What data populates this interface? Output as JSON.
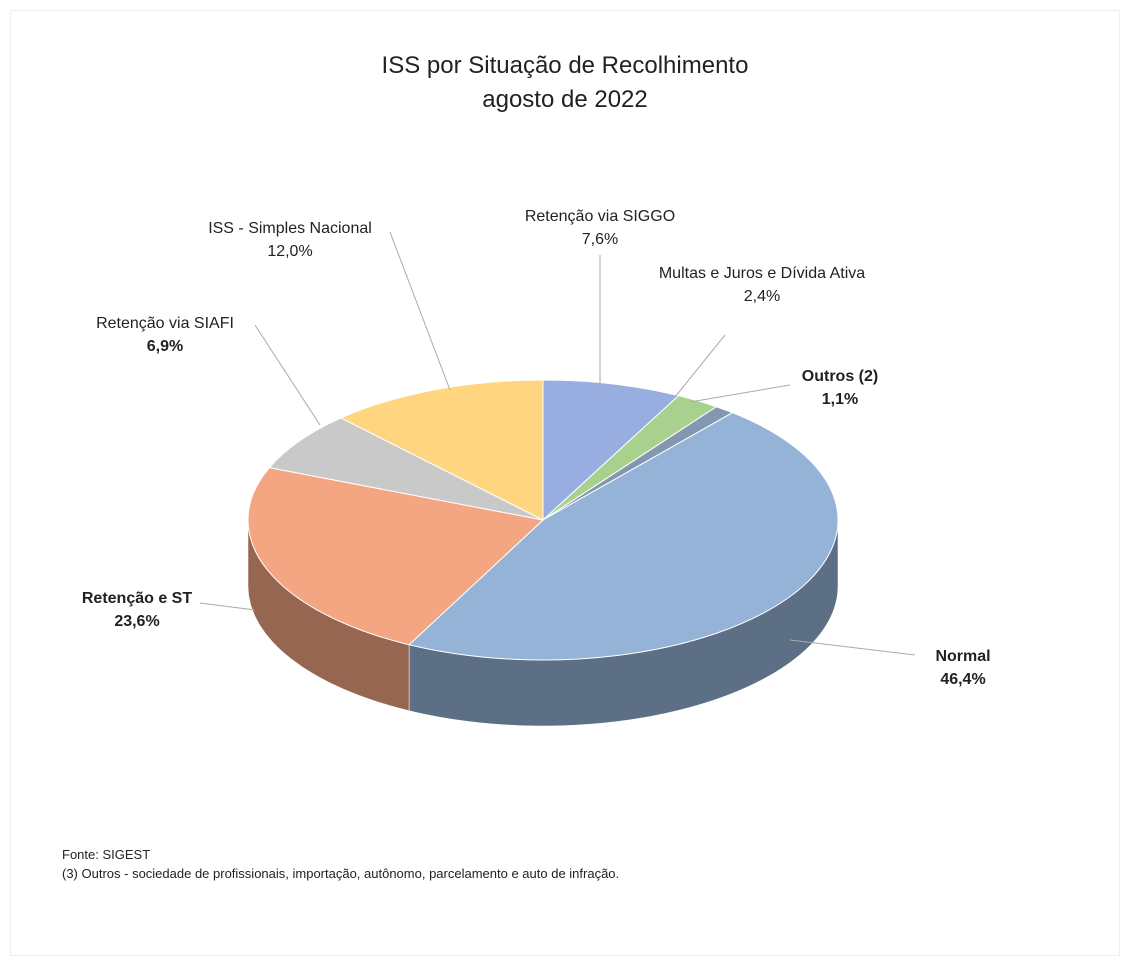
{
  "chart_data": {
    "type": "pie",
    "title": "ISS por Situação de Recolhimento",
    "subtitle": "agosto de 2022",
    "categories": [
      "Retenção via SIGGO",
      "Multas e Juros e Dívida Ativa",
      "Outros (2)",
      "Normal",
      "Retenção e ST",
      "Retenção via SIAFI",
      "ISS - Simples Nacional"
    ],
    "values": [
      7.6,
      2.4,
      1.1,
      46.4,
      23.6,
      6.9,
      12.0
    ],
    "value_labels": [
      "7,6%",
      "2,4%",
      "1,1%",
      "46,4%",
      "23,6%",
      "6,9%",
      "12,0%"
    ],
    "colors": [
      "#98aee0",
      "#a9d18e",
      "#8497b0",
      "#95b3d7",
      "#f4a582",
      "#c9c9c9",
      "#ffd580"
    ],
    "source": "Fonte: SIGEST",
    "note": "(3) Outros - sociedade de profissionais, importação, autônomo, parcelamento e auto de infração."
  }
}
